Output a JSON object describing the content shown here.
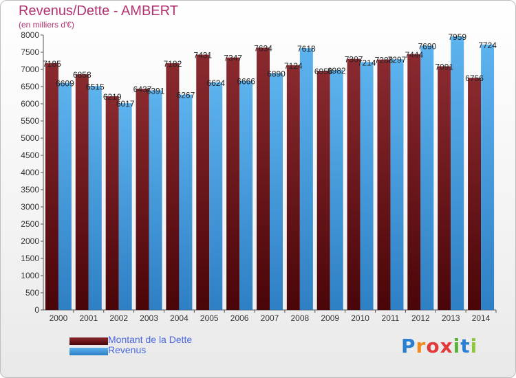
{
  "header": {
    "title": "Revenus/Dette - AMBERT",
    "subtitle": "(en milliers d'€)"
  },
  "logo_text": [
    "P",
    "r",
    "o",
    "x",
    "i",
    "t",
    "i"
  ],
  "colors": {
    "dette": "#7a1a1f",
    "revenus": "#4aa3e6",
    "title": "#b03370",
    "legend_text": "#4b68e0"
  },
  "legend": [
    {
      "label": "Montant de la Dette",
      "color": "#7a1a1f"
    },
    {
      "label": "Revenus",
      "color": "#4aa3e6"
    }
  ],
  "chart_data": {
    "type": "bar",
    "title": "Revenus/Dette - AMBERT",
    "subtitle": "(en milliers d'€)",
    "xlabel": "",
    "ylabel": "",
    "ylim": [
      0,
      8000
    ],
    "yticks": [
      0,
      500,
      1000,
      1500,
      2000,
      2500,
      3000,
      3500,
      4000,
      4500,
      5000,
      5500,
      6000,
      6500,
      7000,
      7500,
      8000
    ],
    "grid": false,
    "legend_position": "bottom-left",
    "categories": [
      "2000",
      "2001",
      "2002",
      "2003",
      "2004",
      "2005",
      "2006",
      "2007",
      "2008",
      "2009",
      "2010",
      "2011",
      "2012",
      "2013",
      "2014"
    ],
    "series": [
      {
        "name": "Montant de la Dette",
        "values": [
          7185,
          6858,
          6219,
          6437,
          7182,
          7431,
          7347,
          7634,
          7124,
          6958,
          7307,
          7288,
          7444,
          7091,
          6756
        ]
      },
      {
        "name": "Revenus",
        "values": [
          6609,
          6515,
          6017,
          6391,
          6267,
          6624,
          6666,
          6890,
          7618,
          6982,
          7214,
          7297,
          7690,
          7959,
          7724
        ]
      }
    ]
  }
}
